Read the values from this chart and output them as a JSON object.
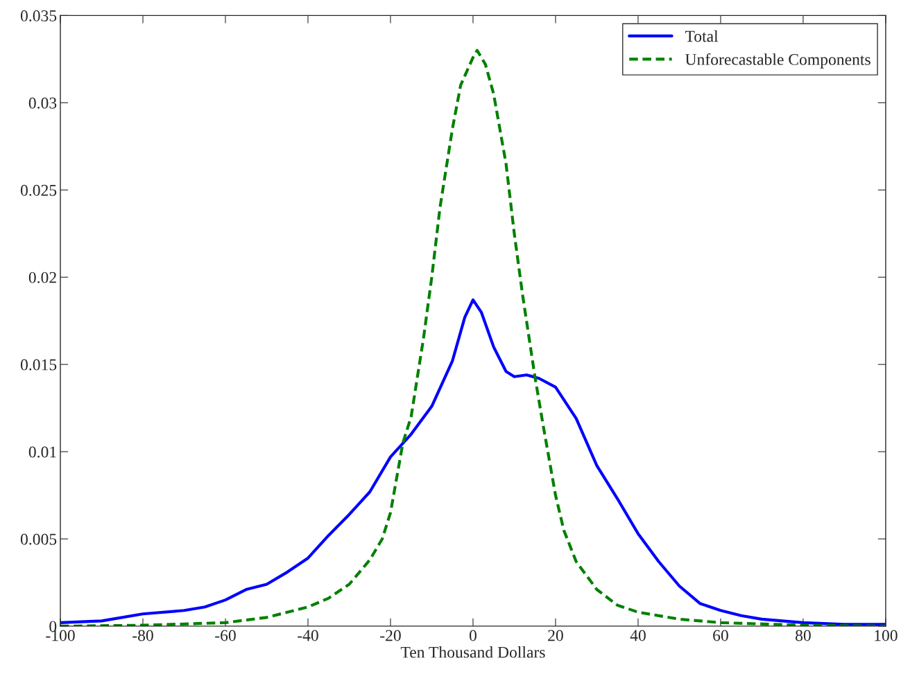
{
  "chart_data": {
    "type": "line",
    "xlabel": "Ten Thousand Dollars",
    "xlim": [
      -100,
      100
    ],
    "xticks": [
      -100,
      -80,
      -60,
      -40,
      -20,
      0,
      20,
      40,
      60,
      80,
      100
    ],
    "ylim": [
      0,
      0.035
    ],
    "yticks": [
      0,
      0.005,
      0.01,
      0.015,
      0.02,
      0.025,
      0.03,
      0.035
    ],
    "grid": false,
    "legend": "top right",
    "series": [
      {
        "name": "Total",
        "color": "#0000ff",
        "line_style": "solid",
        "x": [
          -100,
          -90,
          -80,
          -70,
          -65,
          -60,
          -55,
          -50,
          -45,
          -40,
          -35,
          -30,
          -25,
          -20,
          -15,
          -10,
          -5,
          -2,
          0,
          2,
          5,
          8,
          10,
          13,
          16,
          20,
          25,
          30,
          35,
          40,
          45,
          50,
          55,
          60,
          65,
          70,
          80,
          90,
          100
        ],
        "values": [
          0.0002,
          0.0003,
          0.0007,
          0.0009,
          0.0011,
          0.0015,
          0.0021,
          0.0024,
          0.0031,
          0.0039,
          0.0052,
          0.0064,
          0.0077,
          0.0097,
          0.011,
          0.0126,
          0.0152,
          0.0177,
          0.0187,
          0.018,
          0.016,
          0.0146,
          0.0143,
          0.0144,
          0.0142,
          0.0137,
          0.0119,
          0.0092,
          0.0073,
          0.0053,
          0.0037,
          0.0023,
          0.0013,
          0.0009,
          0.0006,
          0.0004,
          0.0002,
          0.0001,
          0.0001
        ]
      },
      {
        "name": "Unforecastable Components",
        "color": "#008000",
        "line_style": "dashed",
        "x": [
          -100,
          -80,
          -60,
          -50,
          -40,
          -35,
          -30,
          -25,
          -22,
          -20,
          -17,
          -15,
          -12,
          -10,
          -8,
          -5,
          -3,
          0,
          1,
          3,
          5,
          8,
          10,
          12,
          15,
          17,
          20,
          22,
          25,
          30,
          35,
          40,
          50,
          60,
          80,
          100
        ],
        "values": [
          0,
          5e-05,
          0.0002,
          0.0005,
          0.0011,
          0.0016,
          0.0024,
          0.0038,
          0.005,
          0.0065,
          0.0105,
          0.012,
          0.0165,
          0.02,
          0.024,
          0.0285,
          0.031,
          0.0326,
          0.033,
          0.0322,
          0.0305,
          0.0265,
          0.0225,
          0.019,
          0.0143,
          0.0115,
          0.0075,
          0.0055,
          0.0037,
          0.0021,
          0.0012,
          0.0008,
          0.0004,
          0.0002,
          5e-05,
          0
        ]
      }
    ]
  }
}
